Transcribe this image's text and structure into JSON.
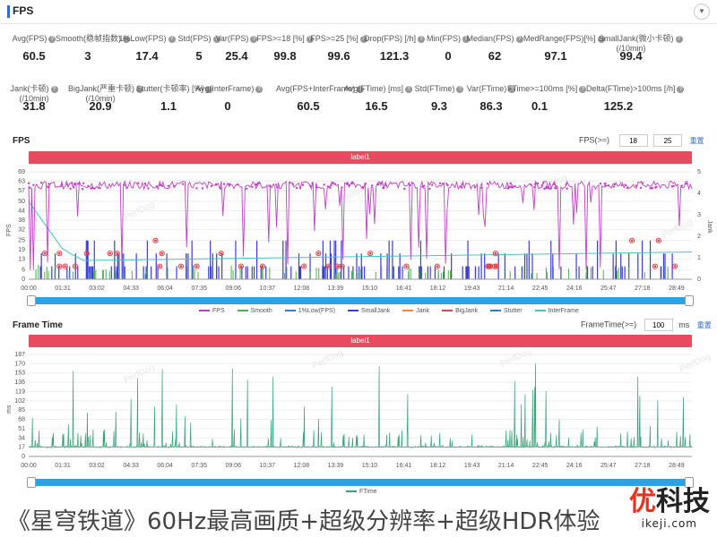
{
  "header": {
    "title": "FPS"
  },
  "stats_row1": [
    {
      "label": "Avg(FPS)",
      "value": "60.5"
    },
    {
      "label": "Smooth(稳帧指数)",
      "value": "3"
    },
    {
      "label": "1%Low(FPS)",
      "value": "17.4"
    },
    {
      "label": "Std(FPS)",
      "value": "5"
    },
    {
      "label": "Var(FPS)",
      "value": "25.4"
    },
    {
      "label": "FPS>=18 [%]",
      "value": "99.8"
    },
    {
      "label": "FPS>=25 [%]",
      "value": "99.6"
    },
    {
      "label": "Drop(FPS) [/h]",
      "value": "121.3"
    },
    {
      "label": "Min(FPS)",
      "value": "0"
    },
    {
      "label": "Median(FPS)",
      "value": "62"
    },
    {
      "label": "MedRange(FPS)[%]",
      "value": "97.1"
    },
    {
      "label": "SmallJank(微小卡顿)",
      "label2": "(/10min)",
      "value": "99.4"
    }
  ],
  "stats_row2": [
    {
      "label": "Jank(卡顿)",
      "label2": "(/10min)",
      "value": "31.8"
    },
    {
      "label": "BigJank(严重卡顿)",
      "label2": "(/10min)",
      "value": "20.9"
    },
    {
      "label": "Stutter(卡顿率) [%]",
      "value": "1.1"
    },
    {
      "label": "Avg(InterFrame)",
      "value": "0"
    },
    {
      "label": "Avg(FPS+InterFrame)",
      "value": "60.5"
    },
    {
      "label": "Avg(FTime) [ms]",
      "value": "16.5"
    },
    {
      "label": "Std(FTime)",
      "value": "9.3"
    },
    {
      "label": "Var(FTime)",
      "value": "86.3"
    },
    {
      "label": "FTime>=100ms [%]",
      "value": "0.1"
    },
    {
      "label": "Delta(FTime)>100ms [/h]",
      "value": "125.2"
    }
  ],
  "fps_section": {
    "title": "FPS",
    "threshold_label": "FPS(>=)",
    "threshold1": "18",
    "threshold2": "25",
    "reset_label": "重置",
    "band_label": "label1",
    "y_label_left": "FPS",
    "y_label_right": "Jank"
  },
  "frametime_section": {
    "title": "Frame Time",
    "threshold_label": "FrameTime(>=)",
    "threshold": "100",
    "unit": "ms",
    "reset_label": "重置",
    "band_label": "label1",
    "y_label_left": "ms"
  },
  "colors": {
    "fps": "#c23fc7",
    "smooth": "#4caf50",
    "low1": "#2f7fd0",
    "smalljank": "#3a3fd6",
    "jank": "#f08c2c",
    "bigjank": "#e0404a",
    "stutter": "#2f7fd0",
    "interframe": "#49c3c9",
    "ftime": "#37a37a",
    "accent": "#2f6bd8"
  },
  "watermark": "PerfDog",
  "caption": "《星穹铁道》60Hz最高画质+超级分辨率+超级HDR体验",
  "logo": {
    "part1": "优",
    "part2": "科技"
  },
  "logo_sub": "ikeji.com",
  "chart_data": [
    {
      "type": "line",
      "x_ticks": [
        "00:00",
        "01:31",
        "03:02",
        "04:33",
        "06:04",
        "07:35",
        "09:06",
        "10:37",
        "12:08",
        "13:39",
        "15:10",
        "16:41",
        "18:12",
        "19:43",
        "21:14",
        "22:45",
        "24:16",
        "25:47",
        "27:18",
        "28:49"
      ],
      "y_ticks_left": [
        0,
        6,
        13,
        19,
        25,
        32,
        38,
        44,
        50,
        57,
        63,
        69
      ],
      "y_ticks_right": [
        0,
        1,
        2,
        3,
        4,
        5
      ],
      "ylim_left": [
        0,
        69
      ],
      "ylim_right": [
        0,
        5
      ],
      "legend": [
        "FPS",
        "Smooth",
        "1%Low(FPS)",
        "SmallJank",
        "Jank",
        "BigJank",
        "Stutter",
        "InterFrame"
      ],
      "series": [
        {
          "name": "FPS",
          "typical": 60,
          "min": 0
        },
        {
          "name": "InterFrame",
          "start": 50,
          "end": 13
        }
      ]
    },
    {
      "type": "line",
      "x_ticks": [
        "00:00",
        "01:31",
        "03:02",
        "04:33",
        "06:04",
        "07:35",
        "09:06",
        "10:37",
        "12:08",
        "13:39",
        "15:10",
        "16:41",
        "18:12",
        "19:43",
        "21:14",
        "22:45",
        "24:16",
        "25:47",
        "27:18",
        "28:49"
      ],
      "y_ticks": [
        0,
        17,
        34,
        51,
        68,
        85,
        102,
        119,
        136,
        153,
        170,
        187
      ],
      "ylim": [
        0,
        187
      ],
      "legend": [
        "FTime"
      ],
      "series": [
        {
          "name": "FTime",
          "typical": 17,
          "max": 170
        }
      ]
    }
  ]
}
